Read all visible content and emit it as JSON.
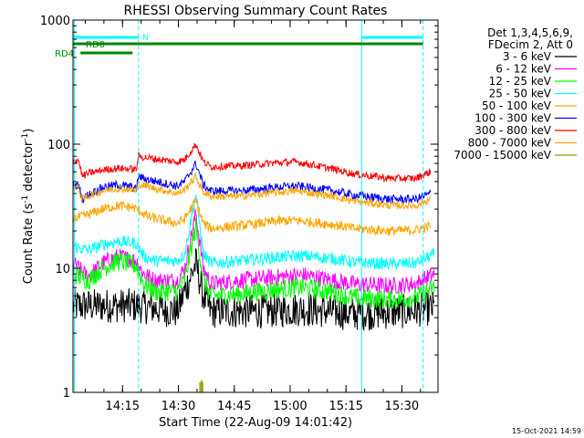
{
  "chart_data": {
    "type": "line",
    "title": "RHESSI Observing Summary Count Rates",
    "xlabel": "Start Time (22-Aug-09 14:01:42)",
    "ylabel_main": "Count Rate (s",
    "ylabel_sup1": "-1",
    "ylabel_mid": " detector",
    "ylabel_sup2": "-1",
    "ylabel_end": ")",
    "yscale": "log",
    "ylim": [
      1,
      1000
    ],
    "xlim_minutes": [
      0,
      98
    ],
    "x_ticks": [
      {
        "label": "14:15",
        "minutes": 13.3
      },
      {
        "label": "14:30",
        "minutes": 28.3
      },
      {
        "label": "14:45",
        "minutes": 43.3
      },
      {
        "label": "15:00",
        "minutes": 58.3
      },
      {
        "label": "15:15",
        "minutes": 73.3
      },
      {
        "label": "15:30",
        "minutes": 88.3
      }
    ],
    "y_ticks": [
      {
        "label": "1",
        "value": 1
      },
      {
        "label": "10",
        "value": 10
      },
      {
        "label": "100",
        "value": 100
      },
      {
        "label": "1000",
        "value": 1000
      }
    ],
    "legend_header": [
      "Det 1,3,4,5,6,9,",
      "FDecim 2, Att 0"
    ],
    "legend_position": "right",
    "series": [
      {
        "name": "3 - 6 keV",
        "color": "#000000",
        "noise": 0.14,
        "points": [
          [
            0,
            5
          ],
          [
            17,
            5
          ],
          [
            28,
            4.5
          ],
          [
            30,
            6.5
          ],
          [
            33,
            11
          ],
          [
            35,
            6
          ],
          [
            37,
            4.5
          ],
          [
            50,
            4.5
          ],
          [
            62,
            4.7
          ],
          [
            75,
            4.3
          ],
          [
            90,
            4.5
          ],
          [
            97,
            4.8
          ]
        ]
      },
      {
        "name": "6 - 12 keV",
        "color": "#ff00ff",
        "noise": 0.07,
        "points": [
          [
            0,
            11
          ],
          [
            4,
            8.5
          ],
          [
            8,
            11
          ],
          [
            12,
            12.5
          ],
          [
            17,
            11.5
          ],
          [
            19,
            9
          ],
          [
            22,
            8
          ],
          [
            28,
            8
          ],
          [
            30,
            10
          ],
          [
            33,
            28
          ],
          [
            35,
            10
          ],
          [
            37,
            7.5
          ],
          [
            45,
            8
          ],
          [
            55,
            8.5
          ],
          [
            62,
            8.8
          ],
          [
            70,
            8
          ],
          [
            75,
            7.5
          ],
          [
            85,
            7.2
          ],
          [
            92,
            7.5
          ],
          [
            97,
            9
          ]
        ]
      },
      {
        "name": "12 - 25 keV",
        "color": "#00ff00",
        "noise": 0.08,
        "points": [
          [
            0,
            9
          ],
          [
            4,
            8
          ],
          [
            8,
            10
          ],
          [
            12,
            11.5
          ],
          [
            17,
            10.5
          ],
          [
            19,
            7.5
          ],
          [
            22,
            6.5
          ],
          [
            28,
            6.5
          ],
          [
            30,
            8
          ],
          [
            33,
            22
          ],
          [
            35,
            8
          ],
          [
            37,
            6
          ],
          [
            45,
            6.2
          ],
          [
            55,
            6.8
          ],
          [
            62,
            7
          ],
          [
            70,
            6.4
          ],
          [
            75,
            5.8
          ],
          [
            85,
            5.6
          ],
          [
            92,
            5.8
          ],
          [
            97,
            7
          ]
        ]
      },
      {
        "name": "25 - 50 keV",
        "color": "#00ffff",
        "noise": 0.05,
        "points": [
          [
            0,
            15
          ],
          [
            4,
            14
          ],
          [
            8,
            15.5
          ],
          [
            12,
            16.5
          ],
          [
            17,
            16
          ],
          [
            19,
            12.5
          ],
          [
            22,
            11.5
          ],
          [
            28,
            11.5
          ],
          [
            30,
            13
          ],
          [
            33,
            40
          ],
          [
            35,
            13
          ],
          [
            37,
            11
          ],
          [
            45,
            11.5
          ],
          [
            55,
            12.3
          ],
          [
            62,
            12.6
          ],
          [
            70,
            12
          ],
          [
            75,
            11.2
          ],
          [
            85,
            10.8
          ],
          [
            92,
            11
          ],
          [
            97,
            13
          ]
        ]
      },
      {
        "name": "50 - 100 keV",
        "color": "#ffa500",
        "noise": 0.04,
        "points": [
          [
            0,
            25
          ],
          [
            4,
            27
          ],
          [
            8,
            30
          ],
          [
            12,
            32
          ],
          [
            16,
            31
          ],
          [
            18,
            29
          ],
          [
            20,
            26
          ],
          [
            28,
            23
          ],
          [
            30,
            25
          ],
          [
            33,
            35
          ],
          [
            35,
            23
          ],
          [
            37,
            21
          ],
          [
            45,
            22
          ],
          [
            55,
            24
          ],
          [
            60,
            24.3
          ],
          [
            70,
            22.5
          ],
          [
            75,
            21
          ],
          [
            85,
            20
          ],
          [
            92,
            20.3
          ],
          [
            96,
            22
          ]
        ]
      },
      {
        "name": "100 - 300 keV",
        "color": "#0000ff",
        "noise": 0.035,
        "points": [
          [
            0,
            46
          ],
          [
            1.5,
            47
          ],
          [
            2.5,
            36
          ],
          [
            4,
            39
          ],
          [
            8,
            45
          ],
          [
            12,
            47
          ],
          [
            16,
            45
          ],
          [
            17,
            43
          ],
          [
            17.5,
            55
          ],
          [
            20,
            52
          ],
          [
            28,
            46
          ],
          [
            30,
            50
          ],
          [
            33,
            70
          ],
          [
            35,
            47
          ],
          [
            37,
            42
          ],
          [
            45,
            42
          ],
          [
            55,
            45
          ],
          [
            60,
            46
          ],
          [
            70,
            42
          ],
          [
            75,
            39
          ],
          [
            85,
            36
          ],
          [
            92,
            36
          ],
          [
            96,
            40
          ]
        ]
      },
      {
        "name": "300 - 800 keV",
        "color": "#ff0000",
        "noise": 0.03,
        "points": [
          [
            0,
            73
          ],
          [
            1.5,
            75
          ],
          [
            2.5,
            55
          ],
          [
            4,
            58
          ],
          [
            8,
            62
          ],
          [
            12,
            64
          ],
          [
            16,
            63
          ],
          [
            17,
            62
          ],
          [
            17.5,
            80
          ],
          [
            22,
            76
          ],
          [
            28,
            72
          ],
          [
            30,
            75
          ],
          [
            33,
            100
          ],
          [
            35,
            72
          ],
          [
            37,
            66
          ],
          [
            45,
            67
          ],
          [
            55,
            71
          ],
          [
            60,
            72
          ],
          [
            70,
            63
          ],
          [
            75,
            58
          ],
          [
            85,
            53
          ],
          [
            92,
            53
          ],
          [
            96,
            60
          ]
        ]
      },
      {
        "name": "800 - 7000 keV",
        "color": "#ffa500",
        "noise": 0.03,
        "points": [
          [
            0,
            45
          ],
          [
            1.5,
            45
          ],
          [
            2.5,
            36
          ],
          [
            4,
            38
          ],
          [
            8,
            42
          ],
          [
            12,
            44
          ],
          [
            16,
            43
          ],
          [
            17,
            42
          ],
          [
            17.5,
            48
          ],
          [
            22,
            44
          ],
          [
            28,
            40
          ],
          [
            30,
            43
          ],
          [
            33,
            55
          ],
          [
            35,
            41
          ],
          [
            37,
            38
          ],
          [
            45,
            38
          ],
          [
            55,
            41
          ],
          [
            60,
            42
          ],
          [
            70,
            38
          ],
          [
            75,
            35
          ],
          [
            85,
            32
          ],
          [
            92,
            32
          ],
          [
            96,
            36
          ]
        ]
      },
      {
        "name": "7000 - 15000 keV",
        "color": "#999900",
        "noise": 0,
        "points": []
      }
    ],
    "flags": [
      {
        "label": "N",
        "color": "#00ffff"
      },
      {
        "label": "RD0",
        "color": "#008800"
      },
      {
        "label": "RD4",
        "color": "#008800"
      }
    ],
    "timestamp": "15-Oct-2021 14:59"
  }
}
